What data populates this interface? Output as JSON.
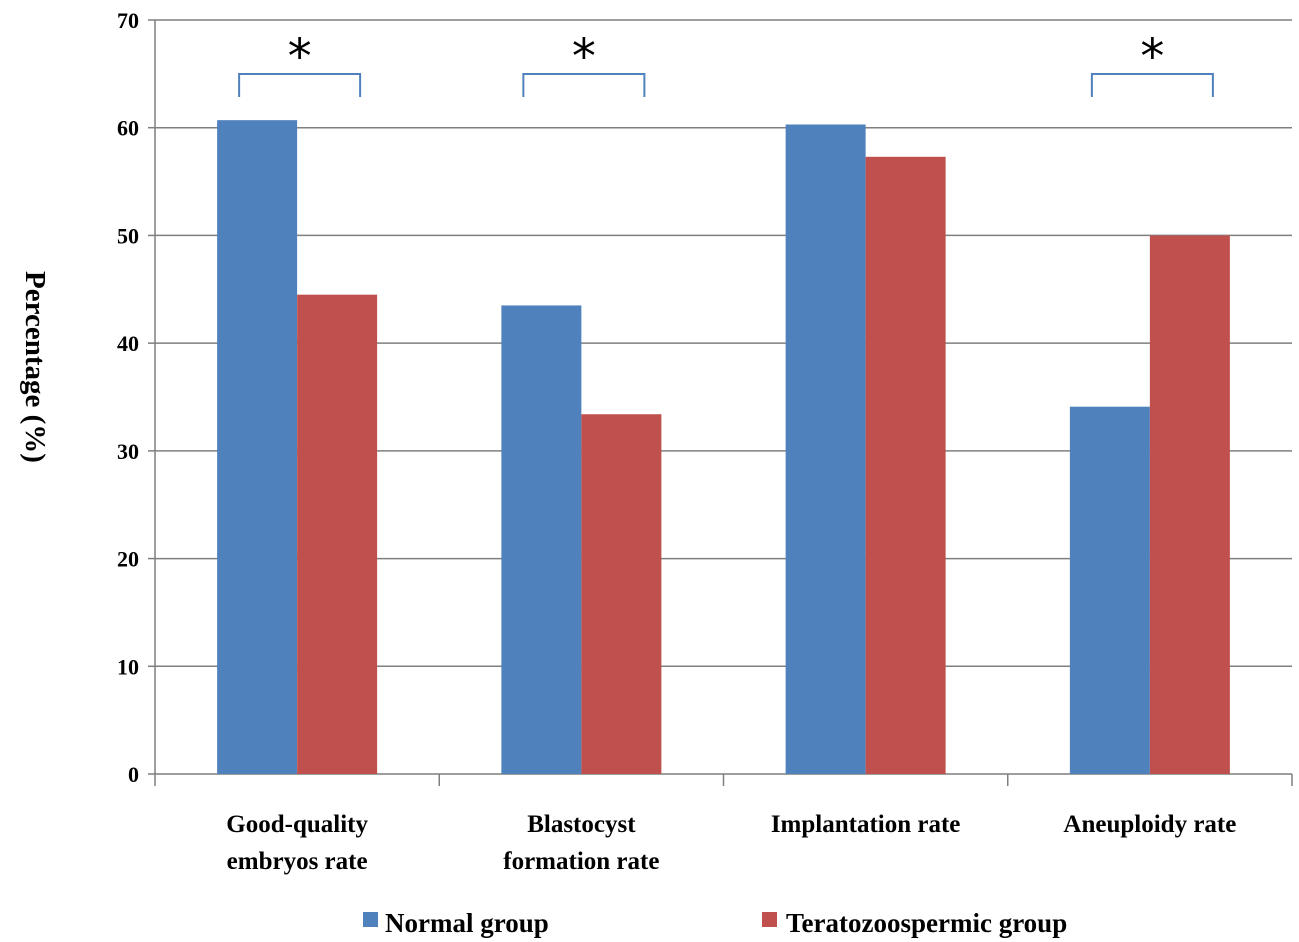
{
  "chart_data": {
    "type": "bar",
    "title": "",
    "xlabel": "",
    "ylabel": "Percentage (%)",
    "ylim": [
      0,
      70
    ],
    "yticks": [
      0,
      10,
      20,
      30,
      40,
      50,
      60,
      70
    ],
    "grid": true,
    "legend_position": "bottom",
    "categories": [
      [
        "Good-quality",
        "embryos rate"
      ],
      [
        "Blastocyst",
        "formation rate"
      ],
      [
        "Implantation rate"
      ],
      [
        "Aneuploidy rate"
      ]
    ],
    "series": [
      {
        "name": "Normal group",
        "color": "#4f81bd",
        "values": [
          60.7,
          43.5,
          60.3,
          34.1
        ]
      },
      {
        "name": "Teratozoospermic group",
        "color": "#c0504d",
        "values": [
          44.5,
          33.4,
          57.3,
          50.0
        ]
      }
    ],
    "annotations": [
      {
        "category_index": 0,
        "text": "*"
      },
      {
        "category_index": 1,
        "text": "*"
      },
      {
        "category_index": 3,
        "text": "*"
      }
    ],
    "bracket_color": "#4f81bd"
  }
}
